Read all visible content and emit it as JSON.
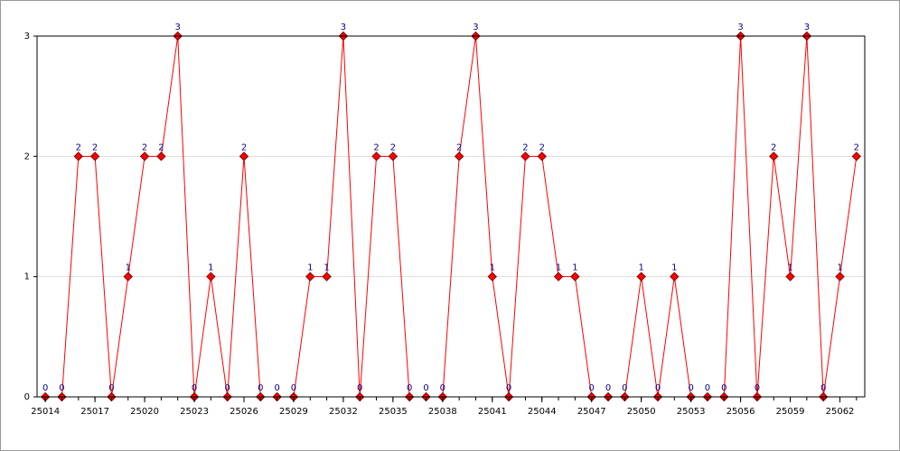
{
  "chart_data": {
    "type": "line",
    "x": [
      25014,
      25015,
      25016,
      25017,
      25018,
      25019,
      25020,
      25021,
      25022,
      25023,
      25024,
      25025,
      25026,
      25027,
      25028,
      25029,
      25030,
      25031,
      25032,
      25033,
      25034,
      25035,
      25036,
      25037,
      25038,
      25039,
      25040,
      25041,
      25042,
      25043,
      25044,
      25045,
      25046,
      25047,
      25048,
      25049,
      25050,
      25051,
      25052,
      25053,
      25054,
      25055,
      25056,
      25057,
      25058,
      25059,
      25060,
      25061,
      25062,
      25063
    ],
    "values": [
      0,
      0,
      2,
      2,
      0,
      1,
      2,
      2,
      3,
      0,
      1,
      0,
      2,
      0,
      0,
      0,
      1,
      1,
      3,
      0,
      2,
      2,
      0,
      0,
      0,
      2,
      3,
      1,
      0,
      2,
      2,
      1,
      1,
      0,
      0,
      0,
      1,
      0,
      1,
      0,
      0,
      0,
      3,
      0,
      2,
      1,
      3,
      0,
      1,
      2
    ],
    "color": "#ff0000",
    "xlim": [
      25013.5,
      25063.5
    ],
    "xticks": [
      25014,
      25017,
      25020,
      25023,
      25026,
      25029,
      25032,
      25035,
      25038,
      25041,
      25044,
      25047,
      25050,
      25053,
      25056,
      25059,
      25062
    ],
    "ylim": [
      0,
      3
    ],
    "yticks": [
      0,
      1,
      2,
      3
    ],
    "grid": true
  }
}
